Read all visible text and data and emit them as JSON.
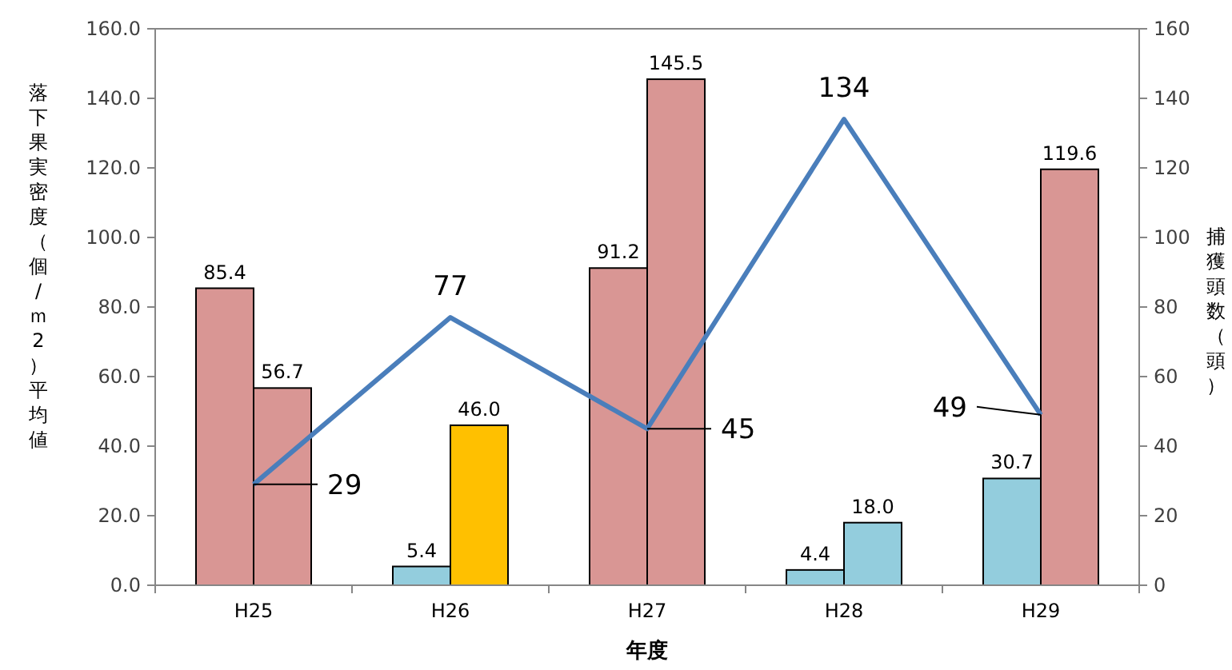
{
  "chart_data": {
    "type": "bar",
    "xlabel": "年度",
    "ylabel": "落下果実密度（個/ｍ2）平均値",
    "y2label": "捕獲頭数（頭）",
    "categories": [
      "H25",
      "H26",
      "H27",
      "H28",
      "H29"
    ],
    "series": [
      {
        "colors": [
          "#d99694",
          "#93cddd",
          "#d99694",
          "#93cddd",
          "#93cddd"
        ],
        "values": [
          85.4,
          5.4,
          91.2,
          4.4,
          30.7
        ],
        "value_labels": [
          "85.4",
          "5.4",
          "91.2",
          "4.4",
          "30.7"
        ]
      },
      {
        "colors": [
          "#d99694",
          "#ffc000",
          "#d99694",
          "#93cddd",
          "#d99694"
        ],
        "values": [
          56.7,
          46.0,
          145.5,
          18.0,
          119.6
        ],
        "value_labels": [
          "56.7",
          "46.0",
          "145.5",
          "18.0",
          "119.6"
        ]
      },
      {
        "type": "line",
        "axis": "y2",
        "color": "#4a7ebb",
        "values": [
          29,
          77,
          45,
          134,
          49
        ],
        "value_labels": [
          "29",
          "77",
          "45",
          "134",
          "49"
        ]
      }
    ],
    "ylim": [
      0,
      160
    ],
    "yticks": [
      {
        "value": 0,
        "label": "0.0"
      },
      {
        "value": 20,
        "label": "20.0"
      },
      {
        "value": 40,
        "label": "40.0"
      },
      {
        "value": 60,
        "label": "60.0"
      },
      {
        "value": 80,
        "label": "80.0"
      },
      {
        "value": 100,
        "label": "100.0"
      },
      {
        "value": 120,
        "label": "120.0"
      },
      {
        "value": 140,
        "label": "140.0"
      },
      {
        "value": 160,
        "label": "160.0"
      }
    ],
    "y2lim": [
      0,
      160
    ],
    "y2ticks": [
      0,
      20,
      40,
      60,
      80,
      100,
      120,
      140,
      160
    ],
    "grid": false,
    "marker": "none",
    "line_style": "solid"
  }
}
